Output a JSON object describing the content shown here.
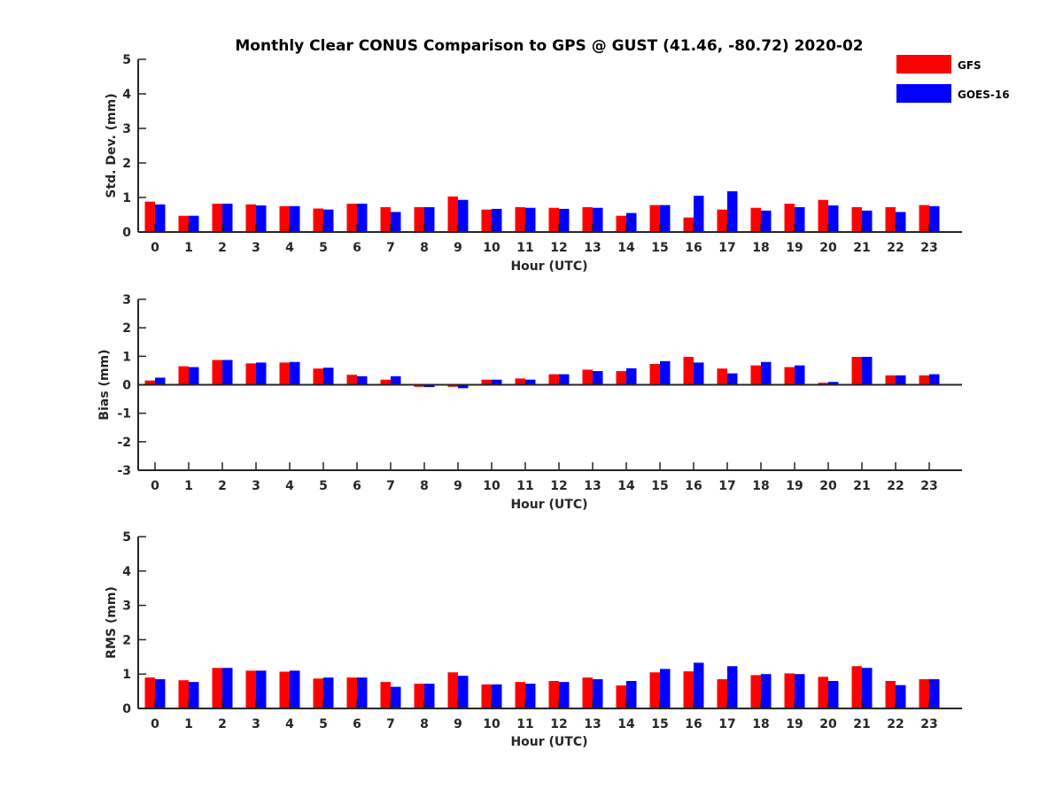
{
  "figure_title": "Monthly Clear CONUS Comparison to GPS @ GUST (41.46, -80.72) 2020-02",
  "colors": {
    "GFS": "#ff0000",
    "GOES-16": "#0000ff"
  },
  "legend": {
    "placement": "top-right",
    "entries": [
      "GFS",
      "GOES-16"
    ]
  },
  "chart_data": [
    {
      "type": "bar",
      "title": "Monthly Clear CONUS Comparison to GPS @ GUST (41.46, -80.72) 2020-02",
      "xlabel": "Hour (UTC)",
      "ylabel": "Std. Dev. (mm)",
      "ylim": [
        0,
        5
      ],
      "yticks": [
        "0",
        "1",
        "2",
        "3",
        "4",
        "5"
      ],
      "categories": [
        "0",
        "1",
        "2",
        "3",
        "4",
        "5",
        "6",
        "7",
        "8",
        "9",
        "10",
        "11",
        "12",
        "13",
        "14",
        "15",
        "16",
        "17",
        "18",
        "19",
        "20",
        "21",
        "22",
        "23"
      ],
      "series": [
        {
          "name": "GFS",
          "values": [
            0.88,
            0.47,
            0.82,
            0.8,
            0.75,
            0.68,
            0.82,
            0.72,
            0.72,
            1.03,
            0.65,
            0.72,
            0.7,
            0.72,
            0.47,
            0.78,
            0.42,
            0.65,
            0.7,
            0.82,
            0.93,
            0.72,
            0.72,
            0.78
          ]
        },
        {
          "name": "GOES-16",
          "values": [
            0.8,
            0.47,
            0.82,
            0.77,
            0.75,
            0.65,
            0.82,
            0.58,
            0.72,
            0.93,
            0.67,
            0.7,
            0.67,
            0.7,
            0.55,
            0.78,
            1.05,
            1.18,
            0.62,
            0.72,
            0.77,
            0.62,
            0.58,
            0.75
          ]
        }
      ]
    },
    {
      "type": "bar",
      "title": "",
      "xlabel": "Hour (UTC)",
      "ylabel": "Bias (mm)",
      "ylim": [
        -3,
        3
      ],
      "yticks": [
        "-3",
        "-2",
        "-1",
        "0",
        "1",
        "2",
        "3"
      ],
      "categories": [
        "0",
        "1",
        "2",
        "3",
        "4",
        "5",
        "6",
        "7",
        "8",
        "9",
        "10",
        "11",
        "12",
        "13",
        "14",
        "15",
        "16",
        "17",
        "18",
        "19",
        "20",
        "21",
        "22",
        "23"
      ],
      "series": [
        {
          "name": "GFS",
          "values": [
            0.15,
            0.65,
            0.87,
            0.75,
            0.78,
            0.57,
            0.35,
            0.18,
            -0.07,
            -0.07,
            0.18,
            0.22,
            0.37,
            0.53,
            0.48,
            0.73,
            0.98,
            0.57,
            0.68,
            0.62,
            0.07,
            0.98,
            0.33,
            0.33
          ]
        },
        {
          "name": "GOES-16",
          "values": [
            0.25,
            0.62,
            0.87,
            0.78,
            0.8,
            0.6,
            0.3,
            0.3,
            -0.08,
            -0.12,
            0.18,
            0.18,
            0.37,
            0.48,
            0.58,
            0.83,
            0.78,
            0.4,
            0.8,
            0.68,
            0.1,
            0.98,
            0.33,
            0.37
          ]
        }
      ]
    },
    {
      "type": "bar",
      "title": "",
      "xlabel": "Hour (UTC)",
      "ylabel": "RMS (mm)",
      "ylim": [
        0,
        5
      ],
      "yticks": [
        "0",
        "1",
        "2",
        "3",
        "4",
        "5"
      ],
      "categories": [
        "0",
        "1",
        "2",
        "3",
        "4",
        "5",
        "6",
        "7",
        "8",
        "9",
        "10",
        "11",
        "12",
        "13",
        "14",
        "15",
        "16",
        "17",
        "18",
        "19",
        "20",
        "21",
        "22",
        "23"
      ],
      "series": [
        {
          "name": "GFS",
          "values": [
            0.9,
            0.82,
            1.18,
            1.1,
            1.07,
            0.87,
            0.9,
            0.77,
            0.72,
            1.05,
            0.7,
            0.77,
            0.8,
            0.9,
            0.67,
            1.05,
            1.08,
            0.85,
            0.97,
            1.02,
            0.92,
            1.23,
            0.8,
            0.85
          ]
        },
        {
          "name": "GOES-16",
          "values": [
            0.85,
            0.77,
            1.18,
            1.1,
            1.1,
            0.9,
            0.9,
            0.63,
            0.72,
            0.95,
            0.7,
            0.72,
            0.77,
            0.85,
            0.8,
            1.15,
            1.33,
            1.23,
            1.0,
            1.0,
            0.8,
            1.18,
            0.68,
            0.85
          ]
        }
      ]
    }
  ]
}
